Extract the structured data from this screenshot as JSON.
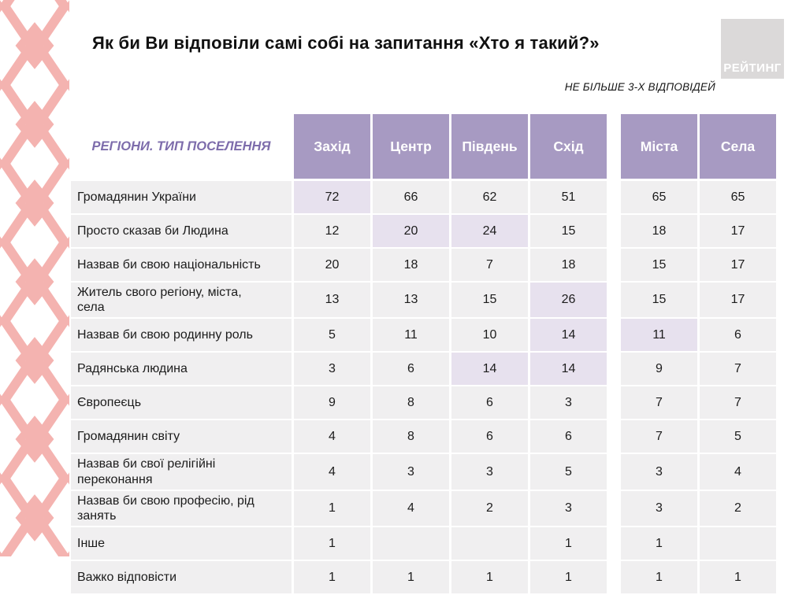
{
  "slide": {
    "title": "Як би Ви відповіли самі собі на запитання «Хто я такий?»",
    "note": "НЕ БІЛЬШЕ 3-Х ВІДПОВІДЕЙ",
    "logo_text": "РЕЙТИНГ"
  },
  "colors": {
    "header_bg": "#a79ac2",
    "corner_text": "#7d6cab",
    "cell_bg": "#f0eff0",
    "highlight_bg": "#e7e1ee",
    "ornament_pink": "#f4b3b0",
    "logo_bg": "#dbd9d9"
  },
  "table": {
    "corner_label": "РЕГІОНИ. ТИП ПОСЕЛЕННЯ",
    "region_columns": [
      "Захід",
      "Центр",
      "Південь",
      "Схід"
    ],
    "settlement_columns": [
      "Міста",
      "Села"
    ],
    "rows": [
      {
        "label": "Громадянин України",
        "values": [
          "72",
          "66",
          "62",
          "51",
          "65",
          "65"
        ],
        "highlighted": [
          0
        ]
      },
      {
        "label": "Просто сказав би Людина",
        "values": [
          "12",
          "20",
          "24",
          "15",
          "18",
          "17"
        ],
        "highlighted": [
          1,
          2
        ]
      },
      {
        "label": "Назвав би свою національність",
        "values": [
          "20",
          "18",
          "7",
          "18",
          "15",
          "17"
        ],
        "highlighted": []
      },
      {
        "label": "Житель свого регіону, міста, села",
        "values": [
          "13",
          "13",
          "15",
          "26",
          "15",
          "17"
        ],
        "highlighted": [
          3
        ]
      },
      {
        "label": "Назвав би свою родинну роль",
        "values": [
          "5",
          "11",
          "10",
          "14",
          "11",
          "6"
        ],
        "highlighted": [
          3,
          4
        ]
      },
      {
        "label": "Радянська людина",
        "values": [
          "3",
          "6",
          "14",
          "14",
          "9",
          "7"
        ],
        "highlighted": [
          2,
          3
        ]
      },
      {
        "label": "Європеєць",
        "values": [
          "9",
          "8",
          "6",
          "3",
          "7",
          "7"
        ],
        "highlighted": []
      },
      {
        "label": "Громадянин світу",
        "values": [
          "4",
          "8",
          "6",
          "6",
          "7",
          "5"
        ],
        "highlighted": []
      },
      {
        "label": "Назвав би свої релігійні переконання",
        "values": [
          "4",
          "3",
          "3",
          "5",
          "3",
          "4"
        ],
        "highlighted": []
      },
      {
        "label": "Назвав би свою професію, рід занять",
        "values": [
          "1",
          "4",
          "2",
          "3",
          "3",
          "2"
        ],
        "highlighted": []
      },
      {
        "label": "Інше",
        "values": [
          "1",
          "",
          "",
          "1",
          "1",
          ""
        ],
        "highlighted": []
      },
      {
        "label": "Важко відповісти",
        "values": [
          "1",
          "1",
          "1",
          "1",
          "1",
          "1"
        ],
        "highlighted": []
      }
    ]
  },
  "chart_data": {
    "type": "table",
    "title": "Як би Ви відповіли самі собі на запитання «Хто я такий?»",
    "subtitle": "НЕ БІЛЬШЕ 3-Х ВІДПОВІДЕЙ",
    "group_header": "РЕГІОНИ. ТИП ПОСЕЛЕННЯ",
    "columns": [
      "Захід",
      "Центр",
      "Південь",
      "Схід",
      "Міста",
      "Села"
    ],
    "row_labels": [
      "Громадянин України",
      "Просто сказав би Людина",
      "Назвав би свою національність",
      "Житель свого регіону, міста, села",
      "Назвав би свою родинну роль",
      "Радянська людина",
      "Європеєць",
      "Громадянин світу",
      "Назвав би свої релігійні переконання",
      "Назвав би свою професію, рід занять",
      "Інше",
      "Важко відповісти"
    ],
    "values": [
      [
        72,
        66,
        62,
        51,
        65,
        65
      ],
      [
        12,
        20,
        24,
        15,
        18,
        17
      ],
      [
        20,
        18,
        7,
        18,
        15,
        17
      ],
      [
        13,
        13,
        15,
        26,
        15,
        17
      ],
      [
        5,
        11,
        10,
        14,
        11,
        6
      ],
      [
        3,
        6,
        14,
        14,
        9,
        7
      ],
      [
        9,
        8,
        6,
        3,
        7,
        7
      ],
      [
        4,
        8,
        6,
        6,
        7,
        5
      ],
      [
        4,
        3,
        3,
        5,
        3,
        4
      ],
      [
        1,
        4,
        2,
        3,
        3,
        2
      ],
      [
        1,
        null,
        null,
        1,
        1,
        null
      ],
      [
        1,
        1,
        1,
        1,
        1,
        1
      ]
    ],
    "highlighted_cells": [
      [
        0,
        0
      ],
      [
        1,
        1
      ],
      [
        1,
        2
      ],
      [
        3,
        3
      ],
      [
        4,
        3
      ],
      [
        4,
        4
      ],
      [
        5,
        2
      ],
      [
        5,
        3
      ]
    ],
    "units": "%"
  }
}
